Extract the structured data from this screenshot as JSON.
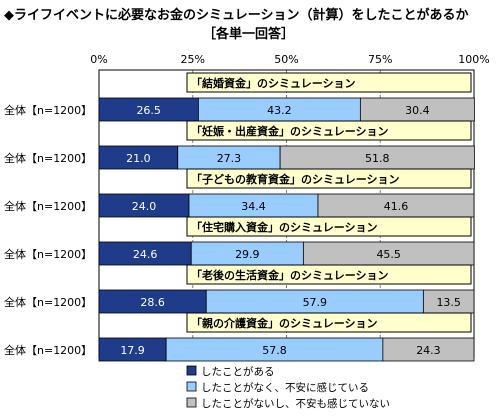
{
  "chart_data": {
    "type": "bar",
    "title": "◆ライフイベントに必要なお金のシミュレーション（計算）をしたことがあるか",
    "subtitle": "［各単一回答］",
    "xticks": [
      "0%",
      "25%",
      "50%",
      "75%",
      "100%"
    ],
    "xlim": [
      0,
      100
    ],
    "row_label": "全体【n=1200】",
    "categories": [
      "「結婚資金」のシミュレーション",
      "「妊娠・出産資金」のシミュレーション",
      "「子どもの教育資金」のシミュレーション",
      "「住宅購入資金」のシミュレーション",
      "「老後の生活資金」のシミュレーション",
      "「親の介護資金」のシミュレーション"
    ],
    "series": [
      {
        "name": "したことがある",
        "color": "#1f3c8a",
        "values": [
          26.5,
          21.0,
          24.0,
          24.6,
          28.6,
          17.9
        ]
      },
      {
        "name": "したことがなく、不安に感じている",
        "color": "#99ccff",
        "values": [
          43.2,
          27.3,
          34.4,
          29.9,
          57.9,
          57.8
        ]
      },
      {
        "name": "したことがないし、不安も感じていない",
        "color": "#c0c0c0",
        "values": [
          30.4,
          51.8,
          41.6,
          45.5,
          13.5,
          24.3
        ]
      }
    ],
    "category_box_color": "#ffffcc",
    "legend_position": "bottom"
  }
}
